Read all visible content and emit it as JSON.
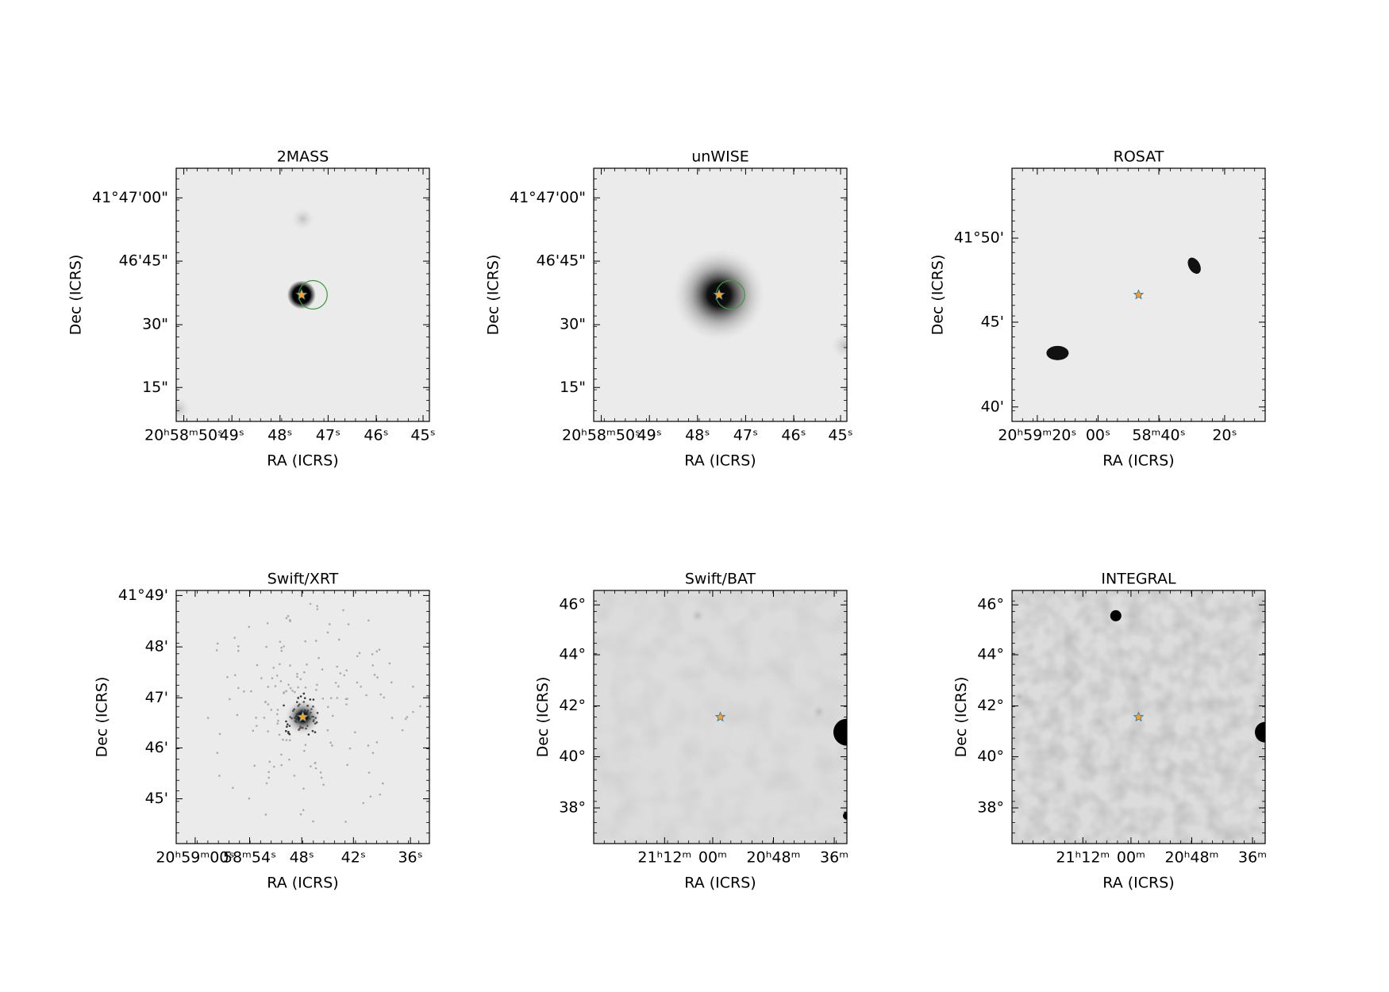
{
  "panels": [
    {
      "title": "2MASS",
      "x_label": "RA (ICRS)",
      "y_label": "Dec (ICRS)",
      "x_ticks": [
        "20ʰ58ᵐ50ˢ",
        "49ˢ",
        "48ˢ",
        "47ˢ",
        "46ˢ",
        "45ˢ"
      ],
      "y_ticks": [
        "41°47'00\"",
        "46'45\"",
        "30\"",
        "15\""
      ]
    },
    {
      "title": "unWISE",
      "x_label": "RA (ICRS)",
      "y_label": "Dec (ICRS)",
      "x_ticks": [
        "20ʰ58ᵐ50ˢ",
        "49ˢ",
        "48ˢ",
        "47ˢ",
        "46ˢ",
        "45ˢ"
      ],
      "y_ticks": [
        "41°47'00\"",
        "46'45\"",
        "30\"",
        "15\""
      ]
    },
    {
      "title": "ROSAT",
      "x_label": "RA (ICRS)",
      "y_label": "Dec (ICRS)",
      "x_ticks": [
        "20ʰ59ᵐ20ˢ",
        "00ˢ",
        "58ᵐ40ˢ",
        "20ˢ"
      ],
      "y_ticks": [
        "41°50'",
        "45'",
        "40'"
      ]
    },
    {
      "title": "Swift/XRT",
      "x_label": "RA (ICRS)",
      "y_label": "Dec (ICRS)",
      "x_ticks": [
        "20ʰ59ᵐ00ˢ",
        "58ᵐ54ˢ",
        "48ˢ",
        "42ˢ",
        "36ˢ"
      ],
      "y_ticks": [
        "41°49'",
        "48'",
        "47'",
        "46'",
        "45'"
      ]
    },
    {
      "title": "Swift/BAT",
      "x_label": "RA (ICRS)",
      "y_label": "Dec (ICRS)",
      "x_ticks": [
        "21ʰ12ᵐ",
        "00ᵐ",
        "20ʰ48ᵐ",
        "36ᵐ"
      ],
      "y_ticks": [
        "46°",
        "44°",
        "42°",
        "40°",
        "38°"
      ]
    },
    {
      "title": "INTEGRAL",
      "x_label": "RA (ICRS)",
      "y_label": "Dec (ICRS)",
      "x_ticks": [
        "21ʰ12ᵐ",
        "00ᵐ",
        "20ʰ48ᵐ",
        "36ᵐ"
      ],
      "y_ticks": [
        "46°",
        "44°",
        "42°",
        "40°",
        "38°"
      ]
    }
  ]
}
